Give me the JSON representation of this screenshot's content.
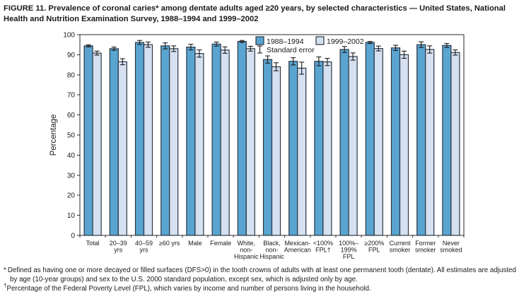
{
  "title": "FIGURE 11. Prevalence of coronal caries* among dentate adults aged ≥20 years, by selected characteristics — United States, National Health and Nutrition Examination Survey, 1988–1994 and 1999–2002",
  "footnotes": [
    {
      "marker": "*",
      "text": "Defined as having one or more decayed or filled surfaces (DFS>0) in the tooth crowns of adults with at least one permanent tooth (dentate). All estimates are adjusted by age (10-year groups) and sex to the U.S. 2000 standard population, except sex, which is adjusted only by age."
    },
    {
      "marker": "†",
      "text": "Percentage of the Federal Poverty Level (FPL), which varies by income and number of persons living in the household."
    }
  ],
  "colors": {
    "series_1988": "#5aa4d0",
    "series_1999": "#d5e0f1",
    "bar_border": "#2b3643",
    "axis": "#2a2a2a",
    "error_bar": "#1a1a1a",
    "text": "#1a1a1a",
    "background": "#ffffff"
  },
  "chart_data": {
    "type": "bar",
    "title": "",
    "xlabel": "",
    "ylabel": "Percentage",
    "ylim": [
      0,
      100
    ],
    "ytick_interval": 10,
    "grid": false,
    "legend_position": "top-center-inside",
    "legend_note_icon": "error-bar-icon",
    "legend_note": "Standard error",
    "categories": [
      [
        "Total"
      ],
      [
        "20–39",
        "yrs"
      ],
      [
        "40–59",
        "yrs"
      ],
      [
        "≥60 yrs"
      ],
      [
        "Male"
      ],
      [
        "Female"
      ],
      [
        "White,",
        "non-",
        "Hispanic"
      ],
      [
        "Black,",
        "non-",
        "Hispanic"
      ],
      [
        "Mexican-",
        "American"
      ],
      [
        "<100%",
        "FPL†"
      ],
      [
        "100%–",
        "199%",
        "FPL"
      ],
      [
        "≥200%",
        "FPL"
      ],
      [
        "Current",
        "smoker"
      ],
      [
        "Former",
        "smoker"
      ],
      [
        "Never",
        "smoked"
      ]
    ],
    "series": [
      {
        "name": "1988–1994",
        "color": "#5aa4d0",
        "values": [
          94.4,
          93.0,
          96.1,
          94.4,
          93.8,
          95.3,
          96.6,
          87.6,
          86.7,
          86.7,
          92.6,
          96.1,
          93.4,
          95.0,
          94.6
        ],
        "standard_error": [
          0.5,
          0.8,
          1.0,
          1.5,
          1.4,
          1.0,
          0.5,
          1.8,
          1.8,
          2.2,
          1.5,
          0.5,
          1.3,
          1.4,
          1.0
        ]
      },
      {
        "name": "1999–2002",
        "color": "#d5e0f1",
        "values": [
          90.8,
          86.5,
          95.0,
          93.0,
          90.6,
          92.3,
          93.0,
          84.0,
          83.3,
          86.4,
          89.1,
          93.1,
          90.0,
          92.6,
          91.1
        ],
        "standard_error": [
          1.0,
          1.5,
          1.3,
          1.4,
          1.8,
          1.6,
          1.2,
          2.0,
          3.0,
          1.8,
          1.8,
          1.2,
          1.8,
          1.8,
          1.3
        ]
      }
    ],
    "yticks": [
      0,
      10,
      20,
      30,
      40,
      50,
      60,
      70,
      80,
      90,
      100
    ]
  }
}
